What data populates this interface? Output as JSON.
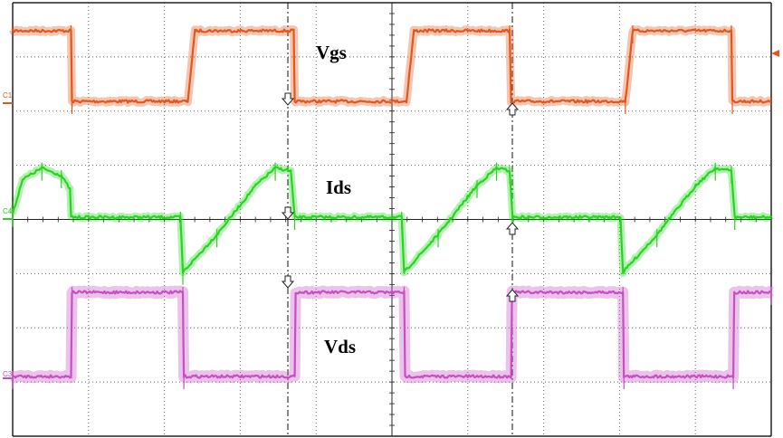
{
  "chart_data": {
    "type": "line",
    "title": "",
    "grid": true,
    "channels": [
      {
        "id": "C1",
        "name": "Vgs",
        "color": "#e0581e",
        "points": [
          [
            0,
            1
          ],
          [
            1.2,
            1
          ],
          [
            1.22,
            0
          ],
          [
            3.6,
            0
          ],
          [
            3.75,
            1
          ],
          [
            5.78,
            1
          ],
          [
            5.8,
            0
          ],
          [
            8.1,
            0
          ],
          [
            8.25,
            1
          ],
          [
            10.22,
            1
          ],
          [
            10.25,
            0
          ],
          [
            12.6,
            0
          ],
          [
            12.75,
            1
          ],
          [
            14.78,
            1
          ],
          [
            14.8,
            0
          ],
          [
            15.6,
            0
          ]
        ]
      },
      {
        "id": "C4",
        "name": "Ids",
        "color": "#29d421",
        "points": [
          [
            0,
            0.05
          ],
          [
            0.2,
            0.65
          ],
          [
            0.6,
            0.85
          ],
          [
            1.0,
            0.72
          ],
          [
            1.18,
            0.48
          ],
          [
            1.2,
            0
          ],
          [
            3.45,
            0
          ],
          [
            3.5,
            -0.95
          ],
          [
            4.2,
            -0.3
          ],
          [
            5.0,
            0.55
          ],
          [
            5.4,
            0.85
          ],
          [
            5.72,
            0.8
          ],
          [
            5.8,
            0
          ],
          [
            8.0,
            0
          ],
          [
            8.05,
            -0.95
          ],
          [
            8.75,
            -0.3
          ],
          [
            9.55,
            0.55
          ],
          [
            9.95,
            0.85
          ],
          [
            10.22,
            0.8
          ],
          [
            10.28,
            0
          ],
          [
            12.5,
            0
          ],
          [
            12.55,
            -0.95
          ],
          [
            13.25,
            -0.3
          ],
          [
            14.05,
            0.55
          ],
          [
            14.45,
            0.85
          ],
          [
            14.78,
            0.8
          ],
          [
            14.85,
            0
          ],
          [
            15.6,
            0
          ]
        ]
      },
      {
        "id": "C3",
        "name": "Vds",
        "color": "#c54fc3",
        "points": [
          [
            0,
            0
          ],
          [
            1.2,
            0
          ],
          [
            1.22,
            1
          ],
          [
            3.5,
            1
          ],
          [
            3.52,
            0
          ],
          [
            5.8,
            0
          ],
          [
            5.82,
            1
          ],
          [
            8.05,
            1
          ],
          [
            8.07,
            0
          ],
          [
            10.25,
            0
          ],
          [
            10.27,
            1
          ],
          [
            12.55,
            1
          ],
          [
            12.57,
            0
          ],
          [
            14.82,
            0
          ],
          [
            14.84,
            1
          ],
          [
            15.6,
            1
          ]
        ]
      }
    ],
    "annotations": [
      "Vgs",
      "Ids",
      "Vds"
    ]
  },
  "labels": {
    "c1": "C1",
    "c4": "C4",
    "c3": "C3",
    "vgs": "Vgs",
    "ids": "Ids",
    "vds": "Vds"
  },
  "icons": {
    "trigger_marker": "trigger-level-arrow-icon",
    "cursor_marker": "cursor-arrow-icon"
  }
}
